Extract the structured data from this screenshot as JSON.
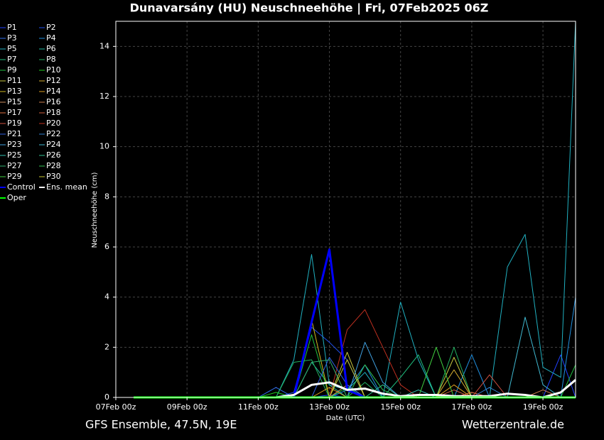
{
  "chart_data": {
    "type": "line",
    "title": "Dunavarsány  (HU)  Neuschneehöhe | Fri, 07Feb2025 06Z",
    "ylabel": "Neuschneehöhe (cm)",
    "xlabel": "Date (UTC)",
    "source_left": "GFS Ensemble, 47.5N, 19E",
    "source_right": "Wetterzentrale.de",
    "grid": true,
    "xlim": [
      0,
      310
    ],
    "ylim": [
      0,
      15
    ],
    "yticks": [
      0,
      2,
      4,
      6,
      8,
      10,
      12,
      14
    ],
    "xticks": [
      {
        "value": 0,
        "label": "07Feb 00z"
      },
      {
        "value": 48,
        "label": "09Feb 00z"
      },
      {
        "value": 96,
        "label": "11Feb 00z"
      },
      {
        "value": 144,
        "label": "13Feb 00z"
      },
      {
        "value": 192,
        "label": "15Feb 00z"
      },
      {
        "value": 240,
        "label": "17Feb 00z"
      },
      {
        "value": 288,
        "label": "19Feb 00z"
      }
    ],
    "x": [
      12,
      24,
      36,
      48,
      60,
      72,
      84,
      96,
      108,
      120,
      132,
      144,
      156,
      168,
      180,
      192,
      204,
      216,
      228,
      240,
      252,
      264,
      276,
      288,
      300,
      310
    ],
    "series": [
      {
        "name": "P1",
        "color": "#2040ff",
        "values": [
          0,
          0,
          0,
          0,
          0,
          0,
          0,
          0,
          0,
          0,
          0,
          0.1,
          0,
          0,
          0,
          0,
          0,
          0,
          0,
          0,
          0,
          0,
          0,
          0,
          1.7,
          0
        ]
      },
      {
        "name": "P2",
        "color": "#2050f0",
        "values": [
          0,
          0,
          0,
          0,
          0,
          0,
          0,
          0,
          0,
          0.2,
          2.8,
          2.2,
          1.5,
          0,
          0,
          0,
          0,
          0,
          0,
          0,
          0,
          0,
          0,
          0,
          0,
          0
        ]
      },
      {
        "name": "P3",
        "color": "#3070f0",
        "values": [
          0,
          0,
          0,
          0,
          0,
          0,
          0,
          0,
          0.4,
          0,
          0,
          0,
          0,
          0,
          0,
          0,
          0,
          0,
          0,
          0,
          0,
          0,
          0,
          0,
          0,
          0
        ]
      },
      {
        "name": "P4",
        "color": "#2090e0",
        "values": [
          0,
          0,
          0,
          0,
          0,
          0,
          0,
          0,
          0,
          0,
          0,
          0,
          0.3,
          1.3,
          0,
          0,
          0,
          0,
          0,
          1.7,
          0,
          0,
          0,
          0,
          0,
          4
        ]
      },
      {
        "name": "P5",
        "color": "#20b0c0",
        "values": [
          0,
          0,
          0,
          0,
          0,
          0,
          0,
          0,
          0,
          1.5,
          5.7,
          0.5,
          0.3,
          1,
          0,
          3.8,
          1.5,
          0,
          0,
          0,
          0,
          5.2,
          6.5,
          1.2,
          0.8,
          15
        ]
      },
      {
        "name": "P6",
        "color": "#20b8a0",
        "values": [
          0,
          0,
          0,
          0,
          0,
          0,
          0,
          0,
          0,
          0,
          1.4,
          0.5,
          0,
          0,
          0,
          0,
          0,
          0,
          0,
          0,
          0,
          0,
          0,
          0,
          0,
          0
        ]
      },
      {
        "name": "P7",
        "color": "#20c080",
        "values": [
          0,
          0,
          0,
          0,
          0,
          0,
          0,
          0,
          0,
          0,
          0,
          0,
          0,
          0,
          0,
          0.8,
          1.7,
          0,
          0,
          0,
          0,
          0,
          0,
          0,
          0,
          0
        ]
      },
      {
        "name": "P8",
        "color": "#20b060",
        "values": [
          0,
          0,
          0,
          0,
          0,
          0,
          0,
          0,
          0,
          1.4,
          1.5,
          0,
          0,
          0.6,
          0,
          0,
          0,
          0,
          2,
          0,
          0,
          0,
          0,
          0,
          0,
          0
        ]
      },
      {
        "name": "P9",
        "color": "#20c040",
        "values": [
          0,
          0,
          0,
          0,
          0,
          0,
          0,
          0,
          0,
          0,
          2.5,
          0,
          0.4,
          0,
          0,
          0,
          0,
          0,
          0,
          0,
          0,
          0,
          0,
          0,
          0,
          1.3
        ]
      },
      {
        "name": "P10",
        "color": "#20d020",
        "values": [
          0,
          0,
          0,
          0,
          0,
          0,
          0,
          0,
          0.2,
          0,
          0,
          0,
          0,
          0,
          0,
          0,
          0,
          0,
          0,
          0,
          0,
          0,
          0,
          0,
          0,
          0
        ]
      },
      {
        "name": "P11",
        "color": "#c8c840",
        "values": [
          0,
          0,
          0,
          0,
          0,
          0,
          0,
          0,
          0,
          0,
          0,
          0,
          1.8,
          0,
          0,
          0,
          0,
          0,
          1.6,
          0,
          0,
          0,
          0,
          0,
          0,
          0
        ]
      },
      {
        "name": "P12",
        "color": "#d8b030",
        "values": [
          0,
          0,
          0,
          0,
          0,
          0,
          0,
          0,
          0,
          0,
          0,
          0,
          0,
          0,
          0,
          0,
          0,
          0,
          1.1,
          0,
          0,
          0,
          0,
          0,
          0,
          0
        ]
      },
      {
        "name": "P13",
        "color": "#d0b820",
        "values": [
          0,
          0,
          0,
          0,
          0,
          0,
          0,
          0,
          0,
          0,
          3.1,
          0,
          0,
          0,
          0,
          0,
          0,
          0,
          0,
          0,
          0,
          0,
          0,
          0,
          0,
          0
        ]
      },
      {
        "name": "P14",
        "color": "#e0a020",
        "values": [
          0,
          0,
          0,
          0,
          0,
          0,
          0,
          0,
          0,
          0,
          0,
          0.4,
          0,
          0,
          0,
          0,
          0,
          0,
          0.5,
          0,
          0,
          0,
          0,
          0,
          0,
          0
        ]
      },
      {
        "name": "P15",
        "color": "#d09060",
        "values": [
          0,
          0,
          0,
          0,
          0,
          0,
          0,
          0,
          0,
          0,
          0,
          0,
          0.5,
          0,
          0,
          0,
          0,
          0,
          0,
          0,
          0,
          0,
          0,
          0,
          0,
          0
        ]
      },
      {
        "name": "P16",
        "color": "#d08050",
        "values": [
          0,
          0,
          0,
          0,
          0,
          0,
          0,
          0,
          0,
          0,
          0,
          0,
          0,
          0,
          0,
          0,
          0,
          0,
          0,
          0,
          0,
          0,
          0,
          0.3,
          0,
          0
        ]
      },
      {
        "name": "P17",
        "color": "#e07040",
        "values": [
          0,
          0,
          0,
          0,
          0,
          0,
          0,
          0,
          0,
          0,
          0,
          0,
          0,
          0,
          0,
          0,
          0,
          0,
          0,
          0.2,
          0,
          0,
          0,
          0,
          0,
          0
        ]
      },
      {
        "name": "P18",
        "color": "#d06040",
        "values": [
          0,
          0,
          0,
          0,
          0,
          0,
          0,
          0,
          0,
          0,
          0,
          0,
          0,
          0,
          0,
          0,
          0,
          0,
          0.3,
          0,
          0,
          0,
          0,
          0,
          0,
          0
        ]
      },
      {
        "name": "P19",
        "color": "#d05040",
        "values": [
          0,
          0,
          0,
          0,
          0,
          0,
          0,
          0,
          0,
          0,
          0,
          0,
          0,
          0,
          0,
          0,
          0,
          0,
          0,
          0,
          0.9,
          0,
          0,
          0,
          0,
          0
        ]
      },
      {
        "name": "P20",
        "color": "#c03020",
        "values": [
          0,
          0,
          0,
          0,
          0,
          0,
          0,
          0,
          0,
          0,
          0,
          0,
          2.7,
          3.5,
          2,
          0.5,
          0,
          0,
          0,
          0,
          0,
          0,
          0,
          0,
          0,
          0
        ]
      },
      {
        "name": "P21",
        "color": "#3060e0",
        "values": [
          0,
          0,
          0,
          0,
          0,
          0,
          0,
          0,
          0,
          0,
          0,
          1.6,
          0.5,
          0,
          0,
          0,
          0,
          0,
          0,
          0,
          0,
          0,
          0,
          0,
          0,
          0
        ]
      },
      {
        "name": "P22",
        "color": "#3080d0",
        "values": [
          0,
          0,
          0,
          0,
          0,
          0,
          0,
          0,
          0,
          0,
          0,
          0,
          0,
          0,
          0,
          0,
          0,
          0,
          0,
          0,
          0.4,
          0,
          0,
          0,
          0,
          0
        ]
      },
      {
        "name": "P23",
        "color": "#40a0e0",
        "values": [
          0,
          0,
          0,
          0,
          0,
          0,
          0,
          0,
          0,
          0,
          0,
          0,
          0,
          2.2,
          0.6,
          0,
          0,
          0,
          0,
          0,
          0,
          0,
          0,
          0,
          0,
          0
        ]
      },
      {
        "name": "P24",
        "color": "#40b8d0",
        "values": [
          0,
          0,
          0,
          0,
          0,
          0,
          0,
          0,
          0,
          0,
          0,
          0,
          0,
          0,
          0,
          0,
          0,
          0,
          0,
          0,
          0,
          0,
          3.2,
          0.5,
          0,
          0
        ]
      },
      {
        "name": "P25",
        "color": "#30c0b0",
        "values": [
          0,
          0,
          0,
          0,
          0,
          0,
          0,
          0,
          0,
          0,
          0,
          0,
          0,
          0,
          0,
          0,
          0.3,
          0,
          0,
          0,
          0,
          0,
          0,
          0,
          0,
          0
        ]
      },
      {
        "name": "P26",
        "color": "#30c090",
        "values": [
          0,
          0,
          0,
          0,
          0,
          0,
          0,
          0,
          0,
          0,
          0,
          0,
          0,
          0,
          0.5,
          0,
          0,
          0,
          0,
          0,
          0,
          0,
          0,
          0,
          0,
          0
        ]
      },
      {
        "name": "P27",
        "color": "#30b070",
        "values": [
          0,
          0,
          0,
          0,
          0,
          0,
          0,
          0,
          0,
          0,
          1.4,
          1.5,
          0,
          0,
          0,
          0,
          0,
          0,
          0,
          0,
          0,
          0,
          0,
          0,
          0,
          0
        ]
      },
      {
        "name": "P28",
        "color": "#30c050",
        "values": [
          0,
          0,
          0,
          0,
          0,
          0,
          0,
          0,
          0,
          0,
          0,
          0,
          0,
          1.3,
          0.3,
          0,
          0,
          0,
          0,
          0,
          0,
          0,
          0,
          0,
          0,
          0
        ]
      },
      {
        "name": "P29",
        "color": "#40d040",
        "values": [
          0,
          0,
          0,
          0,
          0,
          0,
          0,
          0,
          0,
          0,
          0,
          0,
          0,
          0,
          0,
          0,
          0,
          2,
          0,
          0,
          0,
          0,
          0,
          0,
          0,
          0
        ]
      },
      {
        "name": "P30",
        "color": "#c8c830",
        "values": [
          0,
          0,
          0,
          0,
          0,
          0,
          0,
          0,
          0,
          0,
          0,
          0,
          1.5,
          0,
          0,
          0,
          0,
          0,
          0,
          0,
          0,
          0,
          0,
          0,
          0,
          0
        ]
      },
      {
        "name": "Control",
        "color": "#0000ff",
        "values": [
          0,
          0,
          0,
          0,
          0,
          0,
          0,
          0,
          0,
          0,
          3,
          5.9,
          0.3,
          0,
          0,
          0,
          0,
          0,
          0,
          0,
          0,
          0,
          0,
          0,
          0,
          0
        ]
      },
      {
        "name": "Ens. mean",
        "color": "#ffffff",
        "values": [
          0,
          0,
          0,
          0,
          0,
          0,
          0,
          0,
          0,
          0.1,
          0.5,
          0.6,
          0.3,
          0.35,
          0.15,
          0.05,
          0.1,
          0.1,
          0.05,
          0.05,
          0.05,
          0.15,
          0.1,
          0,
          0.2,
          0.7
        ]
      },
      {
        "name": "Oper",
        "color": "#00ff00",
        "values": [
          0,
          0,
          0,
          0,
          0,
          0,
          0,
          0,
          0,
          0,
          0,
          0,
          0,
          0,
          0,
          0,
          0,
          0,
          0,
          0,
          0,
          0,
          0,
          0,
          0,
          0
        ]
      }
    ]
  }
}
